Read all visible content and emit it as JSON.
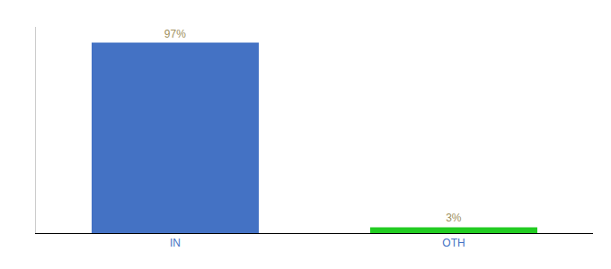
{
  "chart_data": {
    "type": "bar",
    "categories": [
      "IN",
      "OTH"
    ],
    "values": [
      97,
      3
    ],
    "value_labels": [
      "97%",
      "3%"
    ],
    "colors": [
      "#4472c4",
      "#22cc22"
    ],
    "ylim": [
      0,
      105
    ],
    "data_labels": true,
    "tick_labels": "x",
    "grid": false
  }
}
